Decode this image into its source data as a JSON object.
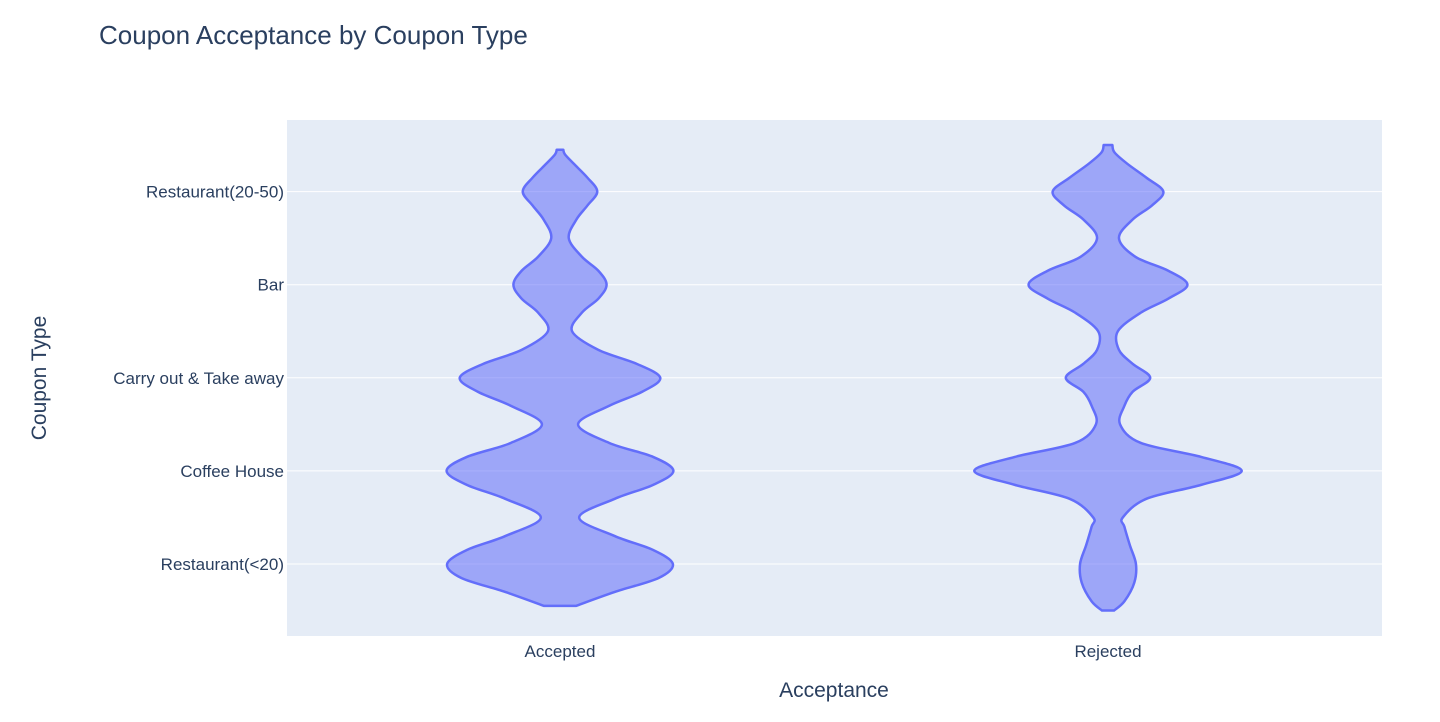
{
  "chart_data": {
    "type": "violin",
    "title": "Coupon Acceptance by Coupon Type",
    "xlabel": "Acceptance",
    "ylabel": "Coupon Type",
    "x_categories": [
      "Accepted",
      "Rejected"
    ],
    "y_categories": [
      "Restaurant(<20)",
      "Coffee House",
      "Carry out & Take away",
      "Bar",
      "Restaurant(20-50)"
    ],
    "y_range": [
      -0.5,
      5.0
    ],
    "grid": true,
    "legend": false,
    "colors": {
      "fill": "#636efa",
      "fill_opacity": 0.55,
      "stroke": "#636efa",
      "plot_bg": "#e5ecf6",
      "grid": "#ffffff",
      "text": "#2a3f5f"
    },
    "violins": [
      {
        "category": "Accepted",
        "y_min": -0.45,
        "y_max": 4.45,
        "profile": [
          [
            -0.45,
            0.029
          ],
          [
            -0.3,
            0.1
          ],
          [
            -0.15,
            0.18
          ],
          [
            0.0,
            0.206
          ],
          [
            0.15,
            0.17
          ],
          [
            0.3,
            0.1
          ],
          [
            0.5,
            0.035
          ],
          [
            0.7,
            0.1
          ],
          [
            0.85,
            0.17
          ],
          [
            1.0,
            0.207
          ],
          [
            1.15,
            0.17
          ],
          [
            1.3,
            0.09
          ],
          [
            1.5,
            0.033
          ],
          [
            1.7,
            0.09
          ],
          [
            1.85,
            0.15
          ],
          [
            2.0,
            0.183
          ],
          [
            2.15,
            0.14
          ],
          [
            2.3,
            0.07
          ],
          [
            2.5,
            0.022
          ],
          [
            2.7,
            0.04
          ],
          [
            2.85,
            0.07
          ],
          [
            3.0,
            0.085
          ],
          [
            3.15,
            0.07
          ],
          [
            3.3,
            0.04
          ],
          [
            3.5,
            0.016
          ],
          [
            3.7,
            0.03
          ],
          [
            3.85,
            0.05
          ],
          [
            4.0,
            0.068
          ],
          [
            4.15,
            0.05
          ],
          [
            4.3,
            0.025
          ],
          [
            4.4,
            0.009
          ],
          [
            4.45,
            0.006
          ]
        ]
      },
      {
        "category": "Rejected",
        "y_min": -0.5,
        "y_max": 4.5,
        "profile": [
          [
            -0.5,
            0.011
          ],
          [
            -0.4,
            0.03
          ],
          [
            -0.2,
            0.048
          ],
          [
            0.0,
            0.051
          ],
          [
            0.2,
            0.04
          ],
          [
            0.4,
            0.03
          ],
          [
            0.5,
            0.027
          ],
          [
            0.7,
            0.07
          ],
          [
            0.85,
            0.17
          ],
          [
            1.0,
            0.244
          ],
          [
            1.15,
            0.17
          ],
          [
            1.3,
            0.06
          ],
          [
            1.5,
            0.022
          ],
          [
            1.7,
            0.03
          ],
          [
            1.85,
            0.045
          ],
          [
            2.0,
            0.077
          ],
          [
            2.15,
            0.045
          ],
          [
            2.3,
            0.02
          ],
          [
            2.5,
            0.018
          ],
          [
            2.7,
            0.06
          ],
          [
            2.85,
            0.11
          ],
          [
            3.0,
            0.145
          ],
          [
            3.15,
            0.11
          ],
          [
            3.3,
            0.05
          ],
          [
            3.5,
            0.02
          ],
          [
            3.7,
            0.045
          ],
          [
            3.85,
            0.08
          ],
          [
            4.0,
            0.101
          ],
          [
            4.15,
            0.07
          ],
          [
            4.3,
            0.035
          ],
          [
            4.42,
            0.012
          ],
          [
            4.5,
            0.008
          ]
        ]
      }
    ]
  }
}
